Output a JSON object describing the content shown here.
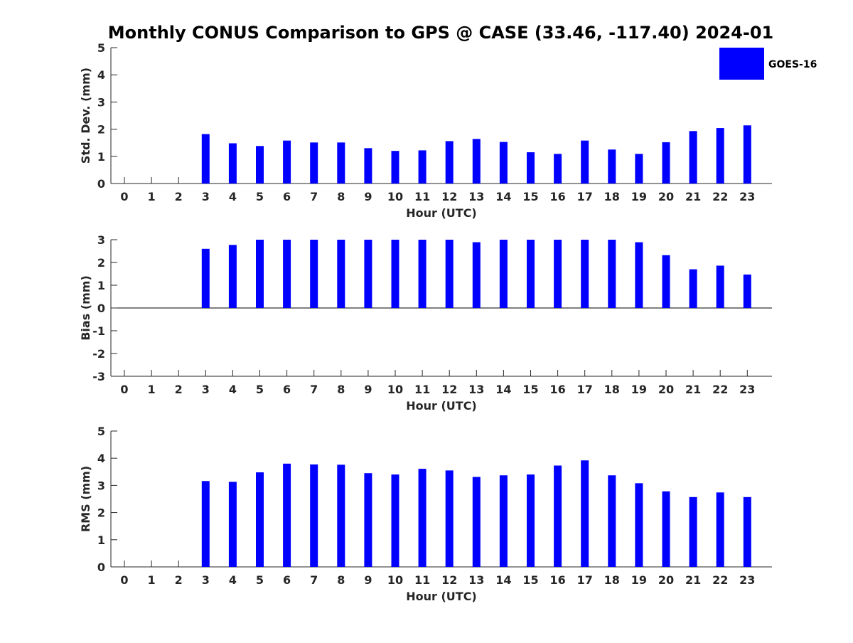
{
  "chart_data": {
    "title": "Monthly CONUS Comparison to GPS @ CASE (33.46, -117.40) 2024-01",
    "bar_color": "#0000ff",
    "legend": {
      "label": "GOES-16",
      "placement": "top-right"
    },
    "categories": [
      "0",
      "1",
      "2",
      "3",
      "4",
      "5",
      "6",
      "7",
      "8",
      "9",
      "10",
      "11",
      "12",
      "13",
      "14",
      "15",
      "16",
      "17",
      "18",
      "19",
      "20",
      "21",
      "22",
      "23"
    ],
    "panels": [
      {
        "type": "bar",
        "ylabel": "Std. Dev. (mm)",
        "xlabel": "Hour (UTC)",
        "ylim": [
          0,
          5
        ],
        "yticks": [
          "0",
          "1",
          "2",
          "3",
          "4",
          "5"
        ],
        "values": [
          null,
          null,
          null,
          1.82,
          1.48,
          1.38,
          1.58,
          1.51,
          1.51,
          1.3,
          1.2,
          1.22,
          1.56,
          1.64,
          1.53,
          1.15,
          1.09,
          1.58,
          1.25,
          1.09,
          1.52,
          1.93,
          2.04,
          2.14
        ]
      },
      {
        "type": "bar",
        "ylabel": "Bias (mm)",
        "xlabel": "Hour (UTC)",
        "ylim": [
          -3,
          3
        ],
        "yticks": [
          "-3",
          "-2",
          "-1",
          "0",
          "1",
          "2",
          "3"
        ],
        "values": [
          null,
          null,
          null,
          2.6,
          2.77,
          3.0,
          3.0,
          3.0,
          3.0,
          3.0,
          3.0,
          3.0,
          3.0,
          2.89,
          3.0,
          3.0,
          3.0,
          3.0,
          3.0,
          2.89,
          2.32,
          1.7,
          1.86,
          1.47
        ]
      },
      {
        "type": "bar",
        "ylabel": "RMS (mm)",
        "xlabel": "Hour (UTC)",
        "ylim": [
          0,
          5
        ],
        "yticks": [
          "0",
          "1",
          "2",
          "3",
          "4",
          "5"
        ],
        "values": [
          null,
          null,
          null,
          3.16,
          3.13,
          3.48,
          3.8,
          3.77,
          3.76,
          3.45,
          3.4,
          3.61,
          3.55,
          3.31,
          3.37,
          3.4,
          3.73,
          3.92,
          3.37,
          3.08,
          2.78,
          2.57,
          2.74,
          2.57
        ]
      }
    ]
  }
}
